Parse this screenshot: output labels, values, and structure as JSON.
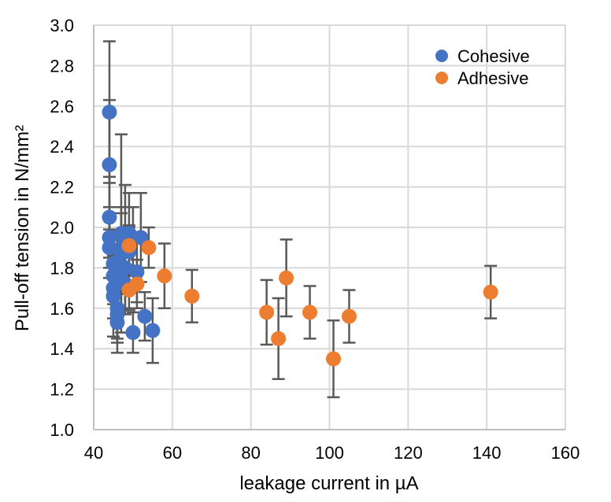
{
  "chart_data": {
    "type": "scatter",
    "title": "",
    "xlabel": "leakage current in µA",
    "ylabel": "Pull-off tension in N/mm²",
    "xlim": [
      40,
      160
    ],
    "ylim": [
      1.0,
      3.0
    ],
    "xticks": [
      "40",
      "60",
      "80",
      "100",
      "120",
      "140",
      "160"
    ],
    "yticks": [
      "1.0",
      "1.2",
      "1.4",
      "1.6",
      "1.8",
      "2.0",
      "2.2",
      "2.4",
      "2.6",
      "2.8",
      "3.0"
    ],
    "grid": true,
    "legend_position": "top-right",
    "series": [
      {
        "name": "Cohesive",
        "color": "#4472C4",
        "points": [
          {
            "x": 44,
            "y": 2.57,
            "err": 0.35
          },
          {
            "x": 44,
            "y": 2.31,
            "err": 0.32
          },
          {
            "x": 44,
            "y": 2.05,
            "err": 0.2
          },
          {
            "x": 44,
            "y": 1.95,
            "err": 0.15
          },
          {
            "x": 44,
            "y": 1.9,
            "err": 0.15
          },
          {
            "x": 45,
            "y": 1.82,
            "err": 0.16
          },
          {
            "x": 45,
            "y": 1.76,
            "err": 0.14
          },
          {
            "x": 45,
            "y": 1.7,
            "err": 0.15
          },
          {
            "x": 45,
            "y": 1.66,
            "err": 0.2
          },
          {
            "x": 46,
            "y": 1.6,
            "err": 0.15
          },
          {
            "x": 46,
            "y": 1.53,
            "err": 0.15
          },
          {
            "x": 46,
            "y": 1.57,
            "err": 0.14
          },
          {
            "x": 46,
            "y": 1.83,
            "err": 0.14
          },
          {
            "x": 47,
            "y": 1.97,
            "err": 0.49
          },
          {
            "x": 47,
            "y": 1.9,
            "err": 0.2
          },
          {
            "x": 47,
            "y": 1.74,
            "err": 0.15
          },
          {
            "x": 47,
            "y": 1.87,
            "err": 0.2
          },
          {
            "x": 48,
            "y": 1.96,
            "err": 0.25
          },
          {
            "x": 48,
            "y": 1.8,
            "err": 0.2
          },
          {
            "x": 48,
            "y": 1.72,
            "err": 0.15
          },
          {
            "x": 49,
            "y": 1.97,
            "err": 0.2
          },
          {
            "x": 49,
            "y": 1.88,
            "err": 0.12
          },
          {
            "x": 50,
            "y": 1.95,
            "err": 0.15
          },
          {
            "x": 50,
            "y": 1.48,
            "err": 0.1
          },
          {
            "x": 51,
            "y": 1.78,
            "err": 0.15
          },
          {
            "x": 52,
            "y": 1.95,
            "err": 0.22
          },
          {
            "x": 53,
            "y": 1.56,
            "err": 0.12
          },
          {
            "x": 55,
            "y": 1.49,
            "err": 0.16
          }
        ]
      },
      {
        "name": "Adhesive",
        "color": "#ED7D31",
        "points": [
          {
            "x": 49,
            "y": 1.91,
            "err": 0.1
          },
          {
            "x": 49,
            "y": 1.69,
            "err": 0.1
          },
          {
            "x": 51,
            "y": 1.72,
            "err": 0.12
          },
          {
            "x": 54,
            "y": 1.9,
            "err": 0.1
          },
          {
            "x": 58,
            "y": 1.76,
            "err": 0.16
          },
          {
            "x": 65,
            "y": 1.66,
            "err": 0.13
          },
          {
            "x": 84,
            "y": 1.58,
            "err": 0.16
          },
          {
            "x": 87,
            "y": 1.45,
            "err": 0.2
          },
          {
            "x": 89,
            "y": 1.75,
            "err": 0.19
          },
          {
            "x": 95,
            "y": 1.58,
            "err": 0.13
          },
          {
            "x": 101,
            "y": 1.35,
            "err": 0.19
          },
          {
            "x": 105,
            "y": 1.56,
            "err": 0.13
          },
          {
            "x": 141,
            "y": 1.68,
            "err": 0.13
          }
        ]
      }
    ]
  }
}
